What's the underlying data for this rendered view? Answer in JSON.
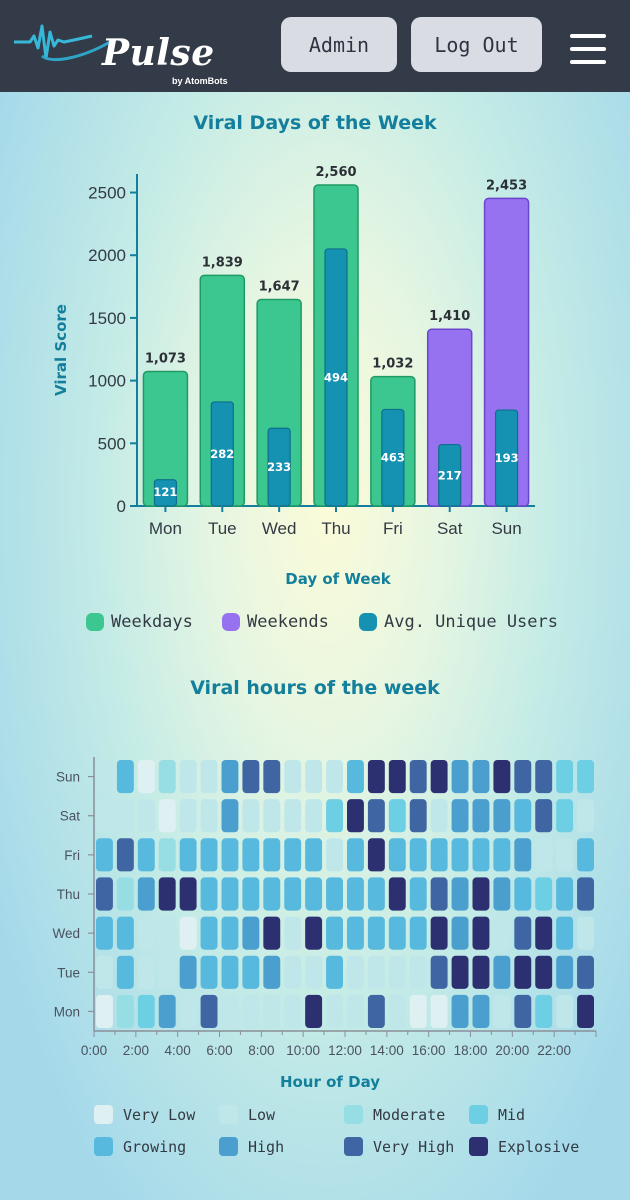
{
  "header": {
    "brand": "Pulse",
    "brand_sub": "by AtomBots",
    "admin_label": "Admin",
    "logout_label": "Log Out"
  },
  "colors": {
    "weekday": "#3cc791",
    "weekday_stroke": "#1f9a62",
    "weekend": "#9671f0",
    "weekend_stroke": "#6b45cc",
    "users": "#1591b2",
    "users_stroke": "#0d6f8a",
    "title": "#137f9c"
  },
  "chart_data": [
    {
      "type": "bar",
      "title": "Viral Days of the Week",
      "xlabel": "Day of Week",
      "ylabel": "Viral Score",
      "ylim": [
        0,
        2600
      ],
      "yticks": [
        0,
        500,
        1000,
        1500,
        2000,
        2500
      ],
      "categories": [
        "Mon",
        "Tue",
        "Wed",
        "Thu",
        "Fri",
        "Sat",
        "Sun"
      ],
      "series": [
        {
          "name": "Viral Score",
          "values": [
            1073,
            1839,
            1647,
            2560,
            1032,
            1410,
            2453
          ],
          "labels": [
            "1,073",
            "1,839",
            "1,647",
            "2,560",
            "1,032",
            "1,410",
            "2,453"
          ]
        },
        {
          "name": "Avg. Unique Users",
          "values": [
            121,
            282,
            233,
            494,
            463,
            217,
            193
          ]
        }
      ],
      "inner_bar_scores": [
        210,
        830,
        620,
        2050,
        770,
        490,
        765
      ],
      "weekend_flags": [
        false,
        false,
        false,
        false,
        false,
        true,
        true
      ],
      "legend": [
        "Weekdays",
        "Weekends",
        "Avg. Unique Users"
      ]
    },
    {
      "type": "heatmap",
      "title": "Viral hours of the week",
      "xlabel": "Hour of Day",
      "x_tick_labels": [
        "0:00",
        "2:00",
        "4:00",
        "6:00",
        "8:00",
        "10:00",
        "12:00",
        "14:00",
        "16:00",
        "18:00",
        "20:00",
        "22:00"
      ],
      "rows": [
        "Sun",
        "Sat",
        "Fri",
        "Thu",
        "Wed",
        "Tue",
        "Mon"
      ],
      "levels": [
        "Very Low",
        "Low",
        "Moderate",
        "Mid",
        "Growing",
        "High",
        "Very High",
        "Explosive"
      ],
      "level_colors": [
        "#dff0f2",
        "#bfe7ea",
        "#97dde4",
        "#6dcfe3",
        "#57b9dd",
        "#4a9fcf",
        "#3f66a3",
        "#2c3070"
      ],
      "grid": [
        [
          1,
          4,
          0,
          2,
          1,
          1,
          5,
          6,
          6,
          1,
          1,
          1,
          4,
          7,
          7,
          6,
          7,
          5,
          5,
          7,
          6,
          6,
          3,
          3
        ],
        [
          1,
          1,
          1,
          0,
          1,
          1,
          5,
          1,
          1,
          1,
          1,
          3,
          7,
          6,
          3,
          6,
          1,
          5,
          5,
          5,
          4,
          6,
          3,
          1
        ],
        [
          4,
          6,
          4,
          2,
          4,
          4,
          4,
          4,
          4,
          4,
          4,
          1,
          4,
          7,
          4,
          4,
          4,
          4,
          4,
          4,
          5,
          1,
          1,
          4
        ],
        [
          6,
          2,
          5,
          7,
          7,
          4,
          4,
          4,
          4,
          4,
          4,
          4,
          4,
          4,
          7,
          4,
          6,
          5,
          7,
          5,
          4,
          3,
          4,
          6
        ],
        [
          4,
          4,
          1,
          1,
          0,
          4,
          4,
          5,
          7,
          1,
          7,
          4,
          4,
          4,
          4,
          4,
          7,
          5,
          7,
          1,
          6,
          7,
          4,
          1
        ],
        [
          1,
          4,
          1,
          1,
          5,
          4,
          4,
          4,
          5,
          1,
          1,
          4,
          1,
          1,
          1,
          1,
          6,
          7,
          7,
          5,
          7,
          7,
          5,
          6
        ],
        [
          0,
          2,
          3,
          5,
          1,
          6,
          1,
          1,
          1,
          1,
          7,
          1,
          1,
          6,
          1,
          0,
          0,
          5,
          5,
          1,
          6,
          3,
          1,
          7
        ]
      ]
    }
  ]
}
